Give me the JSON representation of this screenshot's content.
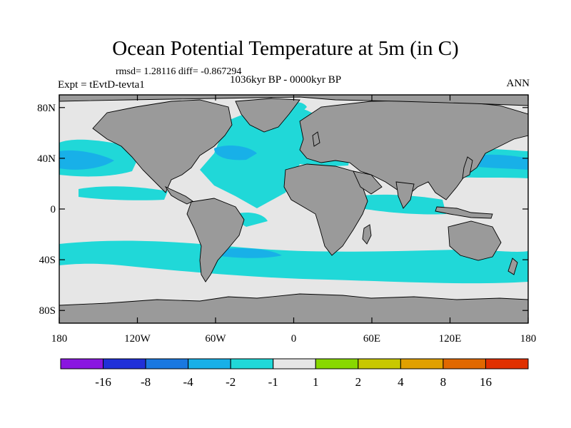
{
  "title": "Ocean Potential Temperature at 5m (in C)",
  "stats": "rmsd= 1.28116 diff= -0.867294",
  "period": "1036kyr BP - 0000kyr BP",
  "experiment": "Expt = tEvtD-tevta1",
  "season": "ANN",
  "axes": {
    "lat_ticks": [
      "80N",
      "40N",
      "0",
      "40S",
      "80S"
    ],
    "lon_ticks": [
      "180",
      "120W",
      "60W",
      "0",
      "60E",
      "120E",
      "180"
    ]
  },
  "colorbar": {
    "colors": [
      "#8a16e0",
      "#2030d8",
      "#1a78e0",
      "#18b0e8",
      "#20d8d8",
      "#e6e6e6",
      "#88d800",
      "#c8c800",
      "#e0a000",
      "#e06800",
      "#e03000"
    ],
    "labels": [
      "-16",
      "-8",
      "-4",
      "-2",
      "-1",
      "1",
      "2",
      "4",
      "8",
      "16"
    ]
  },
  "palette": {
    "land": "#9a9a9a",
    "neutral": "#e6e6e6",
    "cyan": "#20d8d8",
    "light_blue": "#18b0e8",
    "blue": "#1a78e0"
  }
}
